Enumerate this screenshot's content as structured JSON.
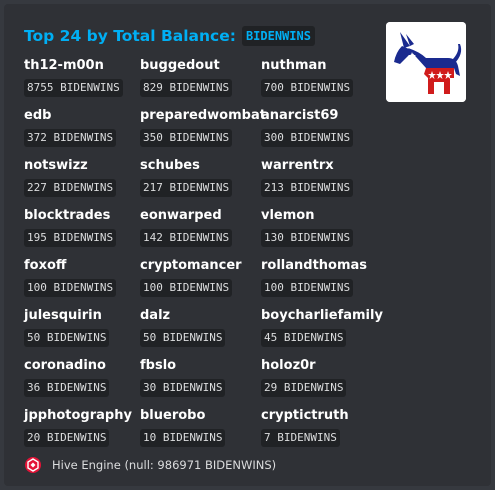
{
  "embed": {
    "title_prefix": "Top 24 by Total Balance:",
    "title_token": "BIDENWINS",
    "thumbnail": {
      "icon": "democratic-donkey-logo",
      "colors": {
        "blue": "#1a2a8f",
        "red": "#d01c1c",
        "white": "#ffffff"
      }
    },
    "entries": [
      {
        "name": "th12-m00n",
        "balance": "8755 BIDENWINS"
      },
      {
        "name": "buggedout",
        "balance": "829 BIDENWINS"
      },
      {
        "name": "nuthman",
        "balance": "700 BIDENWINS"
      },
      {
        "name": "edb",
        "balance": "372 BIDENWINS"
      },
      {
        "name": "preparedwombat",
        "balance": "350 BIDENWINS"
      },
      {
        "name": "anarcist69",
        "balance": "300 BIDENWINS"
      },
      {
        "name": "notswizz",
        "balance": "227 BIDENWINS"
      },
      {
        "name": "schubes",
        "balance": "217 BIDENWINS"
      },
      {
        "name": "warrentrx",
        "balance": "213 BIDENWINS"
      },
      {
        "name": "blocktrades",
        "balance": "195 BIDENWINS"
      },
      {
        "name": "eonwarped",
        "balance": "142 BIDENWINS"
      },
      {
        "name": "vlemon",
        "balance": "130 BIDENWINS"
      },
      {
        "name": "foxoff",
        "balance": "100 BIDENWINS"
      },
      {
        "name": "cryptomancer",
        "balance": "100 BIDENWINS"
      },
      {
        "name": "rollandthomas",
        "balance": "100 BIDENWINS"
      },
      {
        "name": "julesquirin",
        "balance": "50 BIDENWINS"
      },
      {
        "name": "dalz",
        "balance": "50 BIDENWINS"
      },
      {
        "name": "boycharliefamily",
        "balance": "45 BIDENWINS"
      },
      {
        "name": "coronadino",
        "balance": "36 BIDENWINS"
      },
      {
        "name": "fbslo",
        "balance": "30 BIDENWINS"
      },
      {
        "name": "holoz0r",
        "balance": "29 BIDENWINS"
      },
      {
        "name": "jpphotography",
        "balance": "20 BIDENWINS"
      },
      {
        "name": "bluerobo",
        "balance": "10 BIDENWINS"
      },
      {
        "name": "cryptictruth",
        "balance": "7 BIDENWINS"
      }
    ],
    "footer": {
      "icon": "hive-engine-icon",
      "text": "Hive Engine (null: 986971 BIDENWINS)"
    }
  },
  "colors": {
    "background": "#36393f",
    "embed_bg": "#2f3136",
    "title": "#00aff4",
    "code_bg": "#202225",
    "name": "#ffffff",
    "hive_red": "#e31337"
  }
}
